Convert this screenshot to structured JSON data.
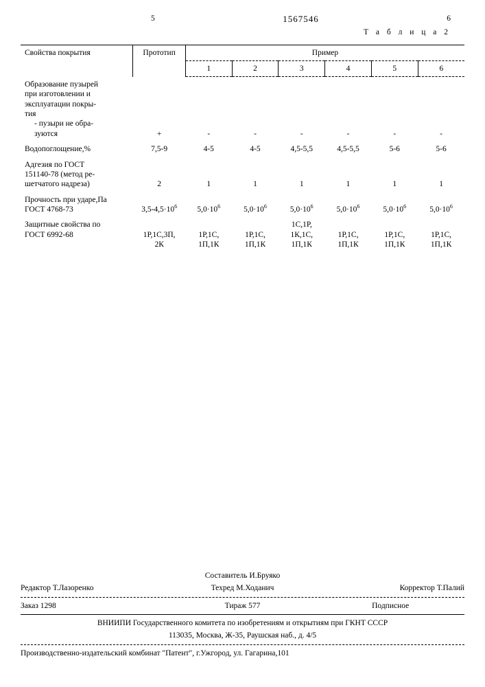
{
  "header": {
    "left_num": "5",
    "doc_number": "1567546",
    "right_num": "6",
    "table_label": "Т а б л и ц а  2"
  },
  "table": {
    "col_property": "Свойства покрытия",
    "col_prototype": "Прототип",
    "col_example": "Пример",
    "example_nums": [
      "1",
      "2",
      "3",
      "4",
      "5",
      "6"
    ],
    "rows": [
      {
        "prop_lines": [
          "Образование пузырей",
          "при изготовлении и",
          "эксплуатации покры-",
          "тия"
        ],
        "sub_lines": [
          "- пузыри не обра-",
          "  зуются"
        ],
        "proto": "+",
        "ex": [
          "-",
          "-",
          "-",
          "-",
          "-",
          "-"
        ]
      },
      {
        "prop_lines": [
          "Водопоглощение,%"
        ],
        "proto": "7,5-9",
        "ex": [
          "4-5",
          "4-5",
          "4,5-5,5",
          "4,5-5,5",
          "5-6",
          "5-6"
        ]
      },
      {
        "prop_lines": [
          "Адгезия по ГОСТ",
          "151140-78 (метод ре-",
          "шетчатого надреза)"
        ],
        "proto": "2",
        "ex": [
          "1",
          "1",
          "1",
          "1",
          "1",
          "1"
        ]
      },
      {
        "prop_lines": [
          "Прочность при ударе,Па",
          "ГОСТ 4768-73"
        ],
        "proto_html": "3,5-4,5·10<sup>6</sup>",
        "ex_html": [
          "5,0·10<sup>6</sup>",
          "5,0·10<sup>6</sup>",
          "5,0·10<sup>6</sup>",
          "5,0·10<sup>6</sup>",
          "5,0·10<sup>6</sup>",
          "5,0·10<sup>6</sup>"
        ]
      },
      {
        "prop_lines": [
          "Защитные свойства по",
          "ГОСТ 6992-68"
        ],
        "proto_lines": [
          "1Р,1С,3П,",
          "2К"
        ],
        "ex_lines": [
          [
            "1Р,1С,",
            "1П,1К"
          ],
          [
            "1Р,1С,",
            "1П,1К"
          ],
          [
            "1С,1Р,",
            "1К,1С,",
            "1П,1К"
          ],
          [
            "1Р,1С,",
            "1П,1К"
          ],
          [
            "1Р,1С,",
            "1П,1К"
          ],
          [
            "1Р,1С,",
            "1П,1К"
          ]
        ]
      }
    ]
  },
  "colophon": {
    "compiler": "Составитель И.Бруяко",
    "editor": "Редактор Т.Лазоренко",
    "techred": "Техред М.Ходанич",
    "corrector": "Корректор Т.Палий",
    "order": "Заказ 1298",
    "tirage": "Тираж 577",
    "subscr": "Подписное",
    "vniipi1": "ВНИИПИ Государственного комитета по изобретениям и открытиям при ГКНТ СССР",
    "vniipi2": "113035, Москва, Ж-35, Раушская наб., д. 4/5",
    "printer": "Производственно-издательский комбинат \"Патент\", г.Ужгород, ул. Гагарина,101"
  }
}
